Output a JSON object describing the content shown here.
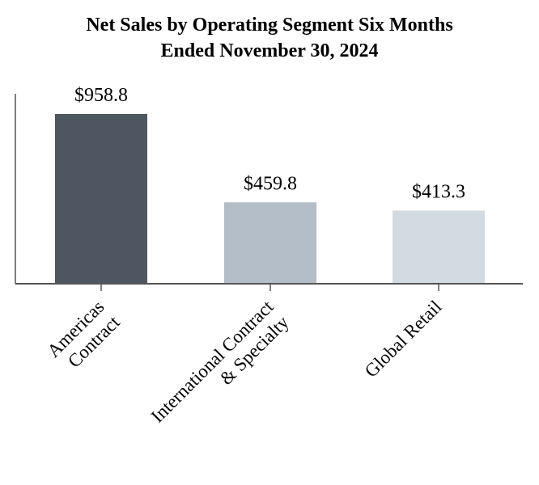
{
  "chart_data": {
    "type": "bar",
    "title_lines": [
      "Net Sales by Operating Segment Six Months",
      "Ended November 30, 2024"
    ],
    "categories": [
      [
        "Americas",
        "Contract"
      ],
      [
        "International Contract",
        "& Specialty"
      ],
      [
        "Global Retail"
      ]
    ],
    "values": [
      958.8,
      459.8,
      413.3
    ],
    "data_labels": [
      "$958.8",
      "$459.8",
      "$413.3"
    ],
    "ylim": [
      0,
      1100
    ],
    "grid": false,
    "colors": [
      "#4e5761",
      "#b4bec8",
      "#d2dbe1"
    ],
    "axis_color": "#555555"
  }
}
